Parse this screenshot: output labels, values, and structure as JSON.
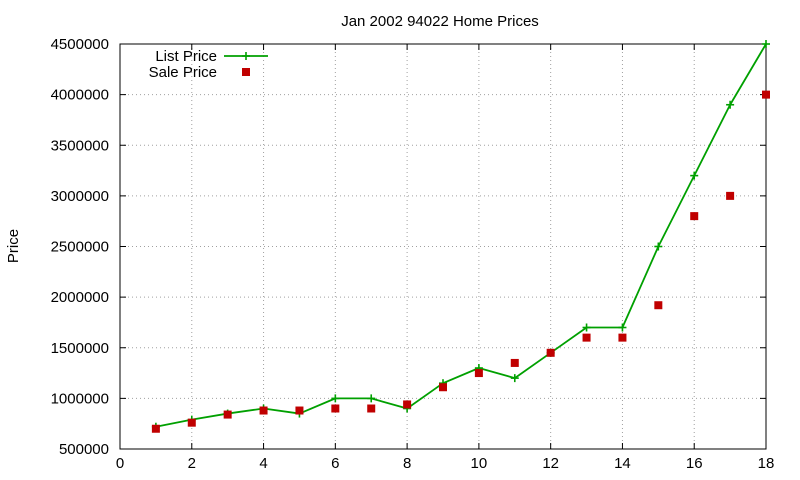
{
  "chart_data": {
    "type": "line",
    "title": "Jan 2002 94022 Home Prices",
    "xlabel": "",
    "ylabel": "Price",
    "xlim": [
      0,
      18
    ],
    "ylim": [
      500000,
      4500000
    ],
    "x_ticks": [
      0,
      2,
      4,
      6,
      8,
      10,
      12,
      14,
      16,
      18
    ],
    "y_ticks": [
      500000,
      1000000,
      1500000,
      2000000,
      2500000,
      3000000,
      3500000,
      4000000,
      4500000
    ],
    "grid": true,
    "legend_position": "top-left",
    "series": [
      {
        "name": "List Price",
        "style": "line-with-plus-markers",
        "color": "#00a000",
        "x": [
          1,
          2,
          3,
          4,
          5,
          6,
          7,
          8,
          9,
          10,
          11,
          12,
          13,
          14,
          15,
          16,
          17,
          18
        ],
        "values": [
          720000,
          790000,
          850000,
          900000,
          850000,
          1000000,
          1000000,
          900000,
          1150000,
          1300000,
          1200000,
          1450000,
          1700000,
          1700000,
          2500000,
          3200000,
          3900000,
          4500000
        ]
      },
      {
        "name": "Sale Price",
        "style": "square-markers",
        "color": "#c00000",
        "x": [
          1,
          2,
          3,
          4,
          5,
          6,
          7,
          8,
          9,
          10,
          11,
          12,
          13,
          14,
          15,
          16,
          17,
          18
        ],
        "values": [
          700000,
          760000,
          840000,
          880000,
          880000,
          900000,
          900000,
          940000,
          1110000,
          1250000,
          1350000,
          1450000,
          1600000,
          1600000,
          1920000,
          2800000,
          3000000,
          4000000
        ]
      }
    ]
  }
}
